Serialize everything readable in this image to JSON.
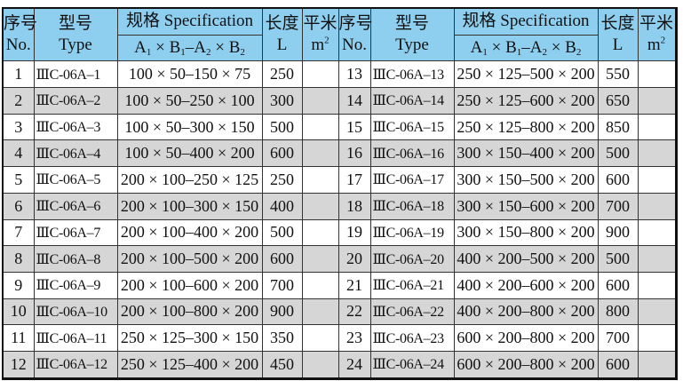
{
  "header": {
    "no_cn": "序号",
    "no_en": "No.",
    "type_cn": "型号",
    "type_en": "Type",
    "spec": "规格 Specification",
    "formula": "A1 × B1–A2 × B2",
    "len_cn": "长度",
    "len_en": "L",
    "area_cn": "平米",
    "area_en": "m2"
  },
  "rows": [
    [
      "1",
      "ⅢC-06A–1",
      "100 × 50–150 × 75",
      "250",
      "",
      "13",
      "ⅢC-06A–13",
      "250 × 125–500 × 200",
      "550",
      ""
    ],
    [
      "2",
      "ⅢC-06A–2",
      "100 × 50–250 × 100",
      "300",
      "",
      "14",
      "ⅢC-06A–14",
      "250 × 125–600 × 200",
      "650",
      ""
    ],
    [
      "3",
      "ⅢC-06A–3",
      "100 × 50–300 × 150",
      "500",
      "",
      "15",
      "ⅢC-06A–15",
      "250 × 125–800 × 200",
      "850",
      ""
    ],
    [
      "4",
      "ⅢC-06A–4",
      "100 × 50–400 × 200",
      "600",
      "",
      "16",
      "ⅢC-06A–16",
      "300 × 150–400 × 200",
      "500",
      ""
    ],
    [
      "5",
      "ⅢC-06A–5",
      "200 × 100–250 × 125",
      "250",
      "",
      "17",
      "ⅢC-06A–17",
      "300 × 150–500 × 200",
      "600",
      ""
    ],
    [
      "6",
      "ⅢC-06A–6",
      "200 × 100–300 × 150",
      "400",
      "",
      "18",
      "ⅢC-06A–18",
      "300 × 150–600 × 200",
      "700",
      ""
    ],
    [
      "7",
      "ⅢC-06A–7",
      "200 × 100–400 × 200",
      "500",
      "",
      "19",
      "ⅢC-06A–19",
      "300 × 150–800 × 200",
      "900",
      ""
    ],
    [
      "8",
      "ⅢC-06A–8",
      "200 × 100–500 × 200",
      "600",
      "",
      "20",
      "ⅢC-06A–20",
      "400 × 200–500 × 200",
      "500",
      ""
    ],
    [
      "9",
      "ⅢC-06A–9",
      "200 × 100–600 × 200",
      "700",
      "",
      "21",
      "ⅢC-06A–21",
      "400 × 200–600 × 200",
      "600",
      ""
    ],
    [
      "10",
      "ⅢC-06A–10",
      "200 × 100–800 × 200",
      "900",
      "",
      "22",
      "ⅢC-06A–22",
      "400 × 200–800 × 200",
      "800",
      ""
    ],
    [
      "11",
      "ⅢC-06A–11",
      "250 × 125–300 × 150",
      "350",
      "",
      "23",
      "ⅢC-06A–23",
      "600 × 200–800 × 200",
      "700",
      ""
    ],
    [
      "12",
      "ⅢC-06A–12",
      "250 × 125–400 × 200",
      "450",
      "",
      "24",
      "ⅢC-06A–24",
      "600 × 200–800 × 200",
      "600",
      ""
    ]
  ]
}
